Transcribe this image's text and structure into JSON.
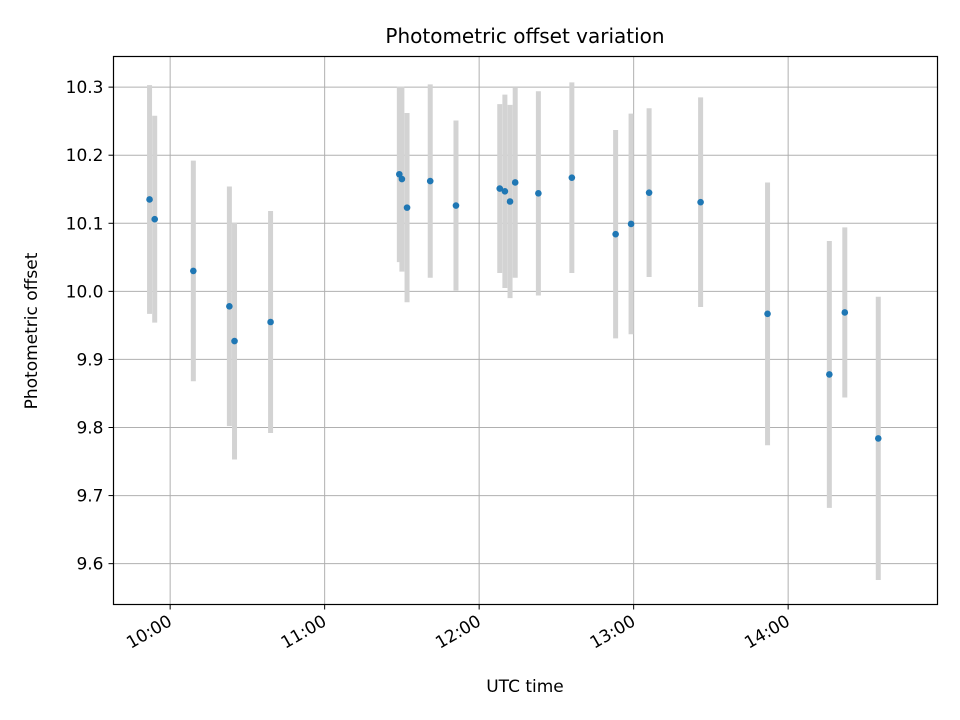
{
  "chart_data": {
    "type": "scatter",
    "title": "Photometric offset variation",
    "xlabel": "UTC time",
    "ylabel": "Photometric offset",
    "x_axis": {
      "kind": "time",
      "ticks": [
        "10:00",
        "11:00",
        "12:00",
        "13:00",
        "14:00"
      ],
      "range": [
        "09:38",
        "14:58"
      ]
    },
    "y_axis": {
      "ticks": [
        "9.6",
        "9.7",
        "9.8",
        "9.9",
        "10.0",
        "10.1",
        "10.2",
        "10.3"
      ],
      "range": [
        9.54,
        10.345
      ]
    },
    "grid": true,
    "colors": {
      "points": "#1f77b4",
      "errorbars": "#d3d3d3"
    },
    "series": [
      {
        "points": [
          {
            "x": "09:52",
            "y": 10.135,
            "err": 0.168
          },
          {
            "x": "09:54",
            "y": 10.106,
            "err": 0.152
          },
          {
            "x": "10:09",
            "y": 10.03,
            "err": 0.162
          },
          {
            "x": "10:23",
            "y": 9.978,
            "err": 0.176
          },
          {
            "x": "10:25",
            "y": 9.927,
            "err": 0.174
          },
          {
            "x": "10:39",
            "y": 9.955,
            "err": 0.163
          },
          {
            "x": "11:29",
            "y": 10.172,
            "err": 0.129
          },
          {
            "x": "11:30",
            "y": 10.165,
            "err": 0.136
          },
          {
            "x": "11:32",
            "y": 10.123,
            "err": 0.139
          },
          {
            "x": "11:41",
            "y": 10.162,
            "err": 0.142
          },
          {
            "x": "11:51",
            "y": 10.126,
            "err": 0.125
          },
          {
            "x": "12:08",
            "y": 10.151,
            "err": 0.124
          },
          {
            "x": "12:10",
            "y": 10.147,
            "err": 0.142
          },
          {
            "x": "12:12",
            "y": 10.132,
            "err": 0.142
          },
          {
            "x": "12:14",
            "y": 10.16,
            "err": 0.14
          },
          {
            "x": "12:23",
            "y": 10.144,
            "err": 0.15
          },
          {
            "x": "12:36",
            "y": 10.167,
            "err": 0.14
          },
          {
            "x": "12:53",
            "y": 10.084,
            "err": 0.153
          },
          {
            "x": "12:59",
            "y": 10.099,
            "err": 0.162
          },
          {
            "x": "13:06",
            "y": 10.145,
            "err": 0.124
          },
          {
            "x": "13:26",
            "y": 10.131,
            "err": 0.154
          },
          {
            "x": "13:52",
            "y": 9.967,
            "err": 0.193
          },
          {
            "x": "14:16",
            "y": 9.878,
            "err": 0.196
          },
          {
            "x": "14:22",
            "y": 9.969,
            "err": 0.125
          },
          {
            "x": "14:35",
            "y": 9.784,
            "err": 0.208
          }
        ]
      }
    ]
  }
}
